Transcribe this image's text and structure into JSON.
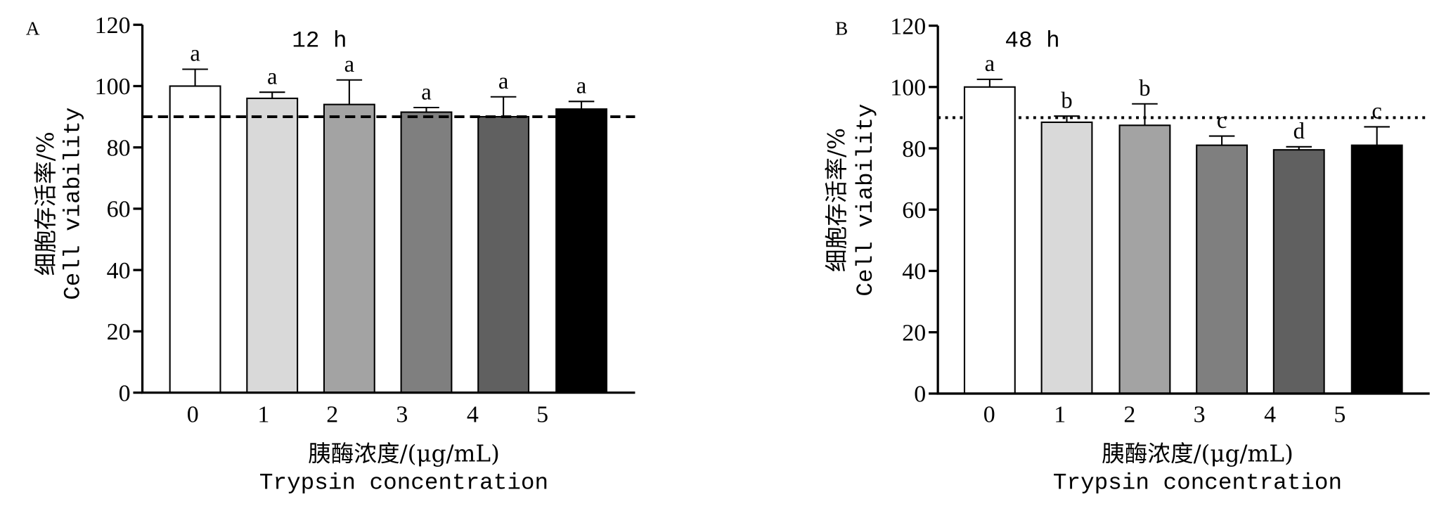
{
  "chart_data": [
    {
      "type": "bar",
      "panel_label": "A",
      "title": "12 h",
      "categories": [
        "0",
        "1",
        "2",
        "3",
        "4",
        "5"
      ],
      "values": [
        100,
        96,
        94,
        91.5,
        90,
        92.5
      ],
      "errors": [
        5.5,
        2,
        8,
        1.5,
        6.5,
        2.5
      ],
      "significance_letters": [
        "a",
        "a",
        "a",
        "a",
        "a",
        "a"
      ],
      "bar_colors": [
        "#ffffff",
        "#d9d9d9",
        "#a3a3a3",
        "#7f7f7f",
        "#606060",
        "#000000"
      ],
      "ylabel_cn": "细胞存活率/%",
      "ylabel": "Cell viability",
      "xlabel_cn": "胰酶浓度/(μg/mL)",
      "xlabel": "Trypsin concentration",
      "ylim": [
        0,
        120
      ],
      "yticks": [
        0,
        20,
        40,
        60,
        80,
        100,
        120
      ],
      "reference_line": 90,
      "reference_line_style": "dashed",
      "grid": false,
      "legend": "none"
    },
    {
      "type": "bar",
      "panel_label": "B",
      "title": "48 h",
      "categories": [
        "0",
        "1",
        "2",
        "3",
        "4",
        "5"
      ],
      "values": [
        100,
        88.5,
        87.5,
        81,
        79.5,
        81
      ],
      "errors": [
        2.5,
        2,
        7,
        3,
        1,
        6
      ],
      "significance_letters": [
        "a",
        "b",
        "b",
        "c",
        "d",
        "c"
      ],
      "bar_colors": [
        "#ffffff",
        "#d9d9d9",
        "#a3a3a3",
        "#7f7f7f",
        "#606060",
        "#000000"
      ],
      "ylabel_cn": "细胞存活率/%",
      "ylabel": "Cell viability",
      "xlabel_cn": "胰酶浓度/(μg/mL)",
      "xlabel": "Trypsin concentration",
      "ylim": [
        0,
        120
      ],
      "yticks": [
        0,
        20,
        40,
        60,
        80,
        100,
        120
      ],
      "reference_line": 90,
      "reference_line_style": "dotted",
      "grid": false,
      "legend": "none"
    }
  ]
}
